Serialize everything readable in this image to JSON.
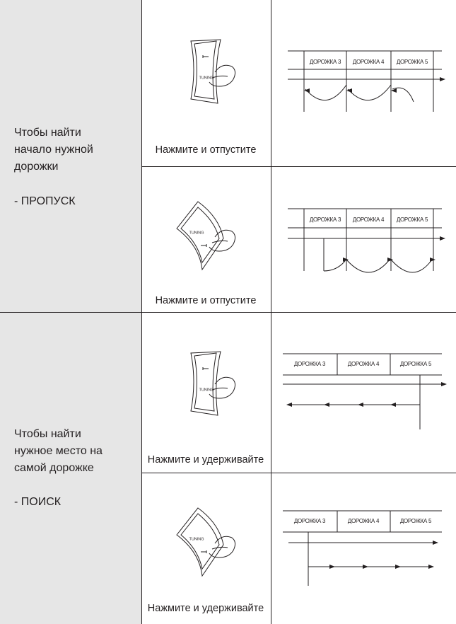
{
  "rows": [
    {
      "description": [
        "Чтобы найти",
        "начало нужной",
        "дорожки"
      ],
      "mode": "- ПРОПУСК",
      "steps": [
        {
          "button_label": "TUNING",
          "caption": "Нажмите и отпустите",
          "tracks": [
            "ДОРОЖКА 3",
            "ДОРОЖКА 4",
            "ДОРОЖКА 5"
          ]
        },
        {
          "button_label": "TUNING",
          "caption": "Нажмите и отпустите",
          "tracks": [
            "ДОРОЖКА 3",
            "ДОРОЖКА 4",
            "ДОРОЖКА 5"
          ]
        }
      ]
    },
    {
      "description": [
        "Чтобы найти",
        "нужное место на",
        "самой дорожке"
      ],
      "mode": "- ПОИСК",
      "steps": [
        {
          "button_label": "TUNING",
          "caption": "Нажмите и удерживайте",
          "tracks": [
            "ДОРОЖКА 3",
            "ДОРОЖКА 4",
            "ДОРОЖКА 5"
          ]
        },
        {
          "button_label": "TUNING",
          "caption": "Нажмите и удерживайте",
          "tracks": [
            "ДОРОЖКА 3",
            "ДОРОЖКА 4",
            "ДОРОЖКА 5"
          ]
        }
      ]
    }
  ]
}
